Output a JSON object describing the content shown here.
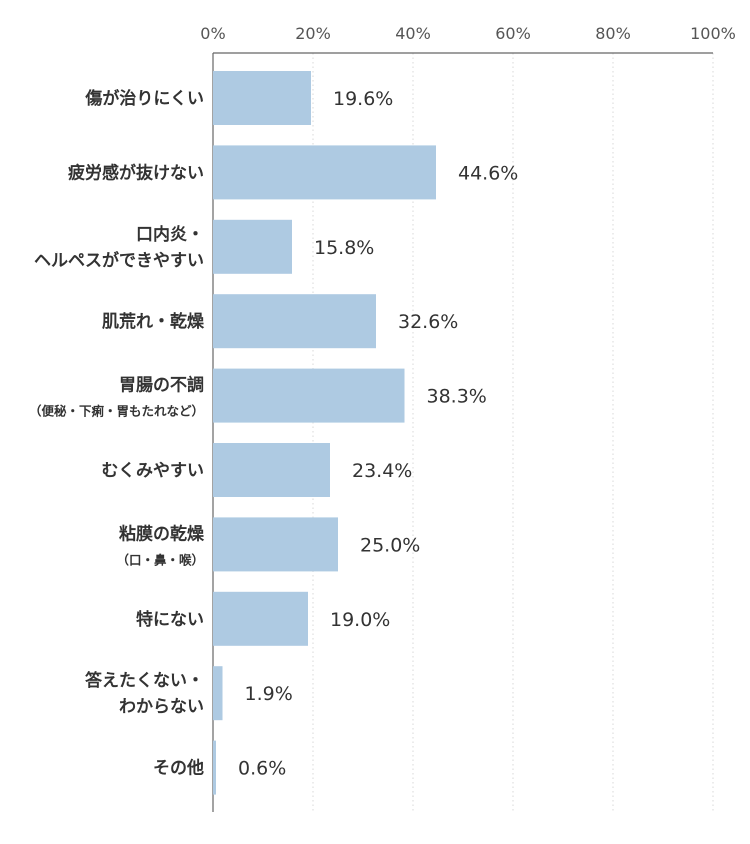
{
  "chart_data": {
    "type": "bar",
    "orientation": "horizontal",
    "title": "",
    "xlabel": "",
    "ylabel": "",
    "xlim": [
      0,
      100
    ],
    "x_ticks": [
      "0%",
      "20%",
      "40%",
      "60%",
      "80%",
      "100%"
    ],
    "x_tick_values": [
      0,
      20,
      40,
      60,
      80,
      100
    ],
    "grid": true,
    "bar_color": "#aecae2",
    "categories": [
      {
        "lines": [
          "傷が治りにくい"
        ]
      },
      {
        "lines": [
          "疲労感が抜けない"
        ]
      },
      {
        "lines": [
          "口内炎・",
          "ヘルペスができやすい"
        ]
      },
      {
        "lines": [
          "肌荒れ・乾燥"
        ]
      },
      {
        "lines": [
          "胃腸の不調"
        ],
        "sub": "（便秘・下痢・胃もたれなど）"
      },
      {
        "lines": [
          "むくみやすい"
        ]
      },
      {
        "lines": [
          "粘膜の乾燥"
        ],
        "sub": "（口・鼻・喉）"
      },
      {
        "lines": [
          "特にない"
        ]
      },
      {
        "lines": [
          "答えたくない・",
          "わからない"
        ]
      },
      {
        "lines": [
          "その他"
        ]
      }
    ],
    "values": [
      19.6,
      44.6,
      15.8,
      32.6,
      38.3,
      23.4,
      25.0,
      19.0,
      1.9,
      0.6
    ],
    "value_labels": [
      "19.6%",
      "44.6%",
      "15.8%",
      "32.6%",
      "38.3%",
      "23.4%",
      "25.0%",
      "19.0%",
      "1.9%",
      "0.6%"
    ]
  }
}
